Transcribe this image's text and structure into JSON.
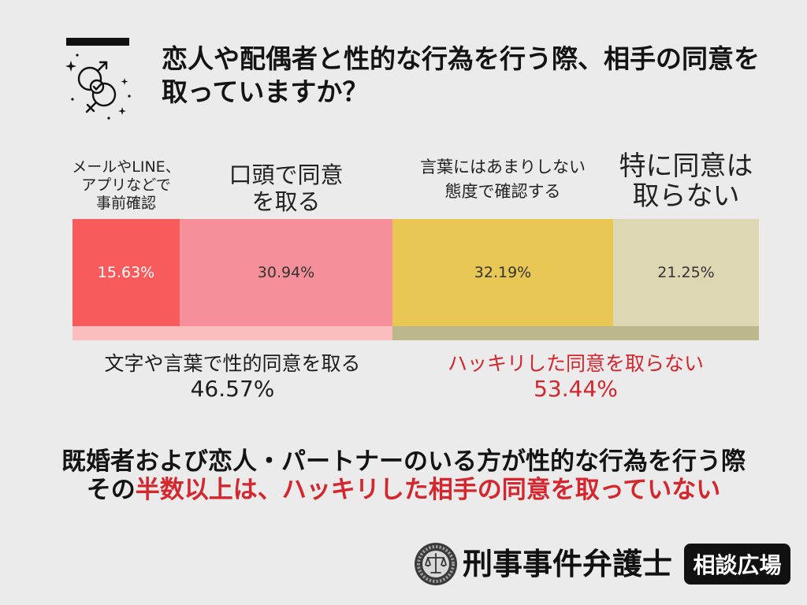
{
  "colors": {
    "background": "#ebebeb",
    "accent_bar": "#111111",
    "text": "#141414"
  },
  "header_icon": "gender-consent-check-icon",
  "chart_data": {
    "type": "bar",
    "orientation": "horizontal",
    "stacked": true,
    "title": "恋人や配偶者と性的な行為を行う際、相手の同意を\n取っていますか？",
    "categories": [
      "メールやLINE、\nアプリなどで\n事前確認",
      "口頭で同意\nを取る",
      "言葉にはあまりしない\n態度で確認する",
      "特に同意は\n取らない"
    ],
    "values": [
      15.63,
      30.94,
      32.19,
      21.25
    ],
    "value_labels": [
      "15.63%",
      "30.94%",
      "32.19%",
      "21.25%"
    ],
    "xlim": [
      0,
      100
    ],
    "grid": false,
    "colors": [
      "#f85b5b",
      "#f58f99",
      "#e9c754",
      "#ddd7b4"
    ],
    "value_label_colors": [
      "#ffffff",
      "#333333",
      "#333333",
      "#333333"
    ],
    "groups": [
      {
        "label": "文字や言葉で性的同意を取る",
        "total": 46.57,
        "total_label": "46.57%",
        "members": [
          0,
          1
        ],
        "bar_color": "#fbbdbd",
        "text_color": "#1c1c1c"
      },
      {
        "label": "ハッキリした同意を取らない",
        "total": 53.44,
        "total_label": "53.44%",
        "members": [
          2,
          3
        ],
        "bar_color": "#bdb88b",
        "text_color": "#d4262c"
      }
    ]
  },
  "conclusion": {
    "line1": "既婚者および恋人・パートナーのいる方が性的な行為を行う際",
    "line2_prefix": "その",
    "line2_highlight": "半数以上は、ハッキリした相手の同意を取っていない",
    "highlight_color": "#d4262c"
  },
  "brand": {
    "emblem_icon": "scales-of-justice-emblem-icon",
    "name": "刑事事件弁護士",
    "badge": "相談広場"
  }
}
